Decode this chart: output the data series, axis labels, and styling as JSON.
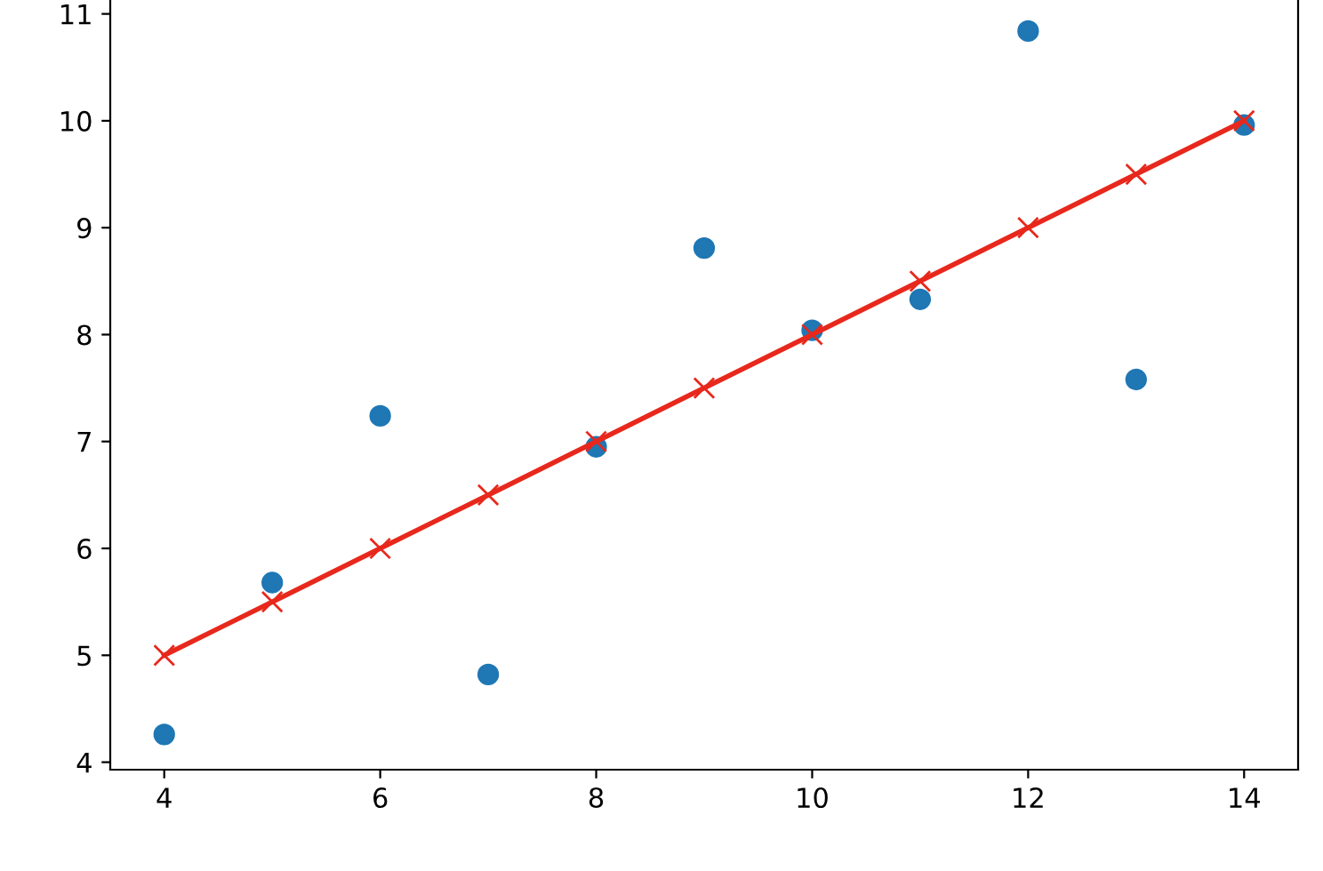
{
  "chart_data": {
    "type": "scatter",
    "xlim": [
      3.5,
      14.5
    ],
    "ylim": [
      3.93,
      11.13
    ],
    "xticks": [
      4,
      6,
      8,
      10,
      12,
      14
    ],
    "yticks": [
      4,
      5,
      6,
      7,
      8,
      9,
      10,
      11
    ],
    "grid": false,
    "legend": false,
    "series": [
      {
        "color": "#1f77b4",
        "marker": "circle",
        "x": [
          10,
          8,
          13,
          9,
          11,
          14,
          6,
          4,
          12,
          7,
          5
        ],
        "values": [
          8.04,
          6.95,
          7.58,
          8.81,
          8.33,
          9.96,
          7.24,
          4.26,
          10.84,
          4.82,
          5.68
        ]
      },
      {
        "type": "line",
        "color": "#e8281c",
        "marker": "cross",
        "line_style": "solid",
        "x": [
          4,
          5,
          6,
          7,
          8,
          9,
          10,
          11,
          12,
          13,
          14
        ],
        "values": [
          5,
          5.5,
          6,
          6.5,
          7,
          7.5,
          8,
          8.5,
          9,
          9.5,
          10
        ]
      }
    ]
  }
}
